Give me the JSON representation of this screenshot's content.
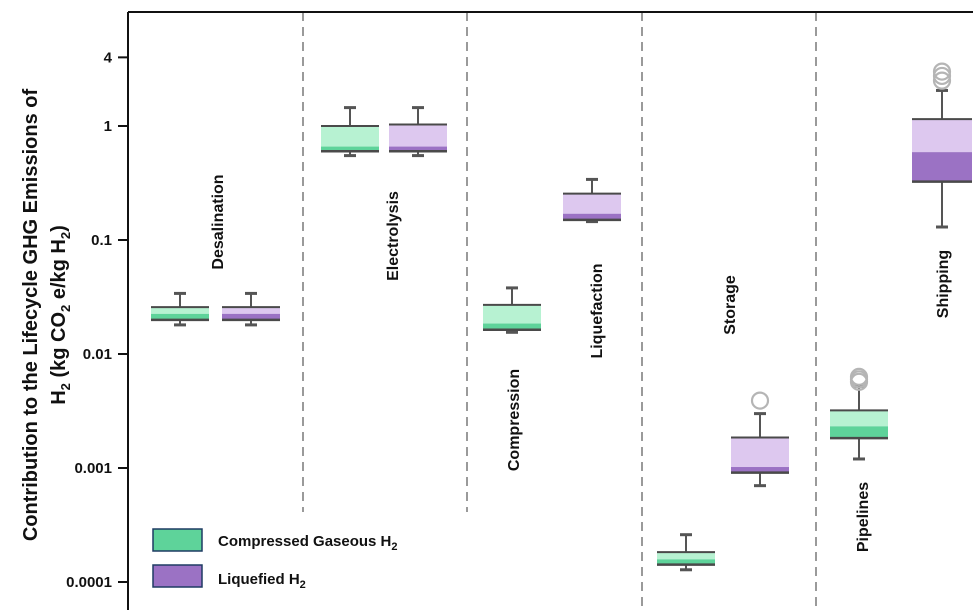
{
  "chart_data": {
    "type": "box",
    "y_scale": "log",
    "ylim": [
      6e-05,
      4
    ],
    "y_ticks": [
      "4",
      "1",
      "0.1",
      "0.01",
      "0.001",
      "0.0001"
    ],
    "ylabel_line1": "Contribution to the Lifecycle GHG Emissions of",
    "ylabel_line2": "H2 (kg CO2 e/kg H2)",
    "grid": false,
    "legend_position": "bottom-left",
    "categories": [
      "Desalination",
      "Electrolysis",
      "Compression",
      "Liquefaction",
      "Storage",
      "Pipelines",
      "Shipping"
    ],
    "series": [
      {
        "name": "Compressed Gaseous H2",
        "color": "#5ed39a",
        "light_color": "#b7f2d2"
      },
      {
        "name": "Liquefied H2",
        "color": "#9b72c4",
        "light_color": "#ddc8ef"
      }
    ],
    "legend": [
      {
        "label": "Compressed Gaseous H",
        "sub": "2"
      },
      {
        "label": "Liquefied H",
        "sub": "2"
      }
    ],
    "boxes": [
      {
        "category": "Desalination",
        "series": "Compressed Gaseous H2",
        "min": 0.018,
        "q1": 0.0199,
        "median": 0.0225,
        "q3": 0.0258,
        "max": 0.034,
        "outliers": []
      },
      {
        "category": "Desalination",
        "series": "Liquefied H2",
        "min": 0.018,
        "q1": 0.0199,
        "median": 0.0225,
        "q3": 0.0258,
        "max": 0.034,
        "outliers": []
      },
      {
        "category": "Electrolysis",
        "series": "Compressed Gaseous H2",
        "min": 0.55,
        "q1": 0.6,
        "median": 0.66,
        "q3": 1.0,
        "max": 1.45,
        "outliers": []
      },
      {
        "category": "Electrolysis",
        "series": "Liquefied H2",
        "min": 0.55,
        "q1": 0.6,
        "median": 0.66,
        "q3": 1.03,
        "max": 1.45,
        "outliers": []
      },
      {
        "category": "Compression",
        "series": "Compressed Gaseous H2",
        "min": 0.0155,
        "q1": 0.0163,
        "median": 0.0185,
        "q3": 0.027,
        "max": 0.038,
        "outliers": []
      },
      {
        "category": "Liquefaction",
        "series": "Liquefied H2",
        "min": 0.145,
        "q1": 0.15,
        "median": 0.17,
        "q3": 0.255,
        "max": 0.34,
        "outliers": []
      },
      {
        "category": "Storage",
        "series": "Compressed Gaseous H2",
        "min": 0.000128,
        "q1": 0.000142,
        "median": 0.000158,
        "q3": 0.000183,
        "max": 0.00026,
        "outliers": []
      },
      {
        "category": "Storage",
        "series": "Liquefied H2",
        "min": 0.0007,
        "q1": 0.00091,
        "median": 0.00102,
        "q3": 0.00185,
        "max": 0.003,
        "outliers": [
          0.0039
        ]
      },
      {
        "category": "Pipelines",
        "series": "Compressed Gaseous H2",
        "min": 0.0012,
        "q1": 0.00183,
        "median": 0.00232,
        "q3": 0.0032,
        "max": 0.0052,
        "outliers": [
          0.0057,
          0.006,
          0.0063
        ]
      },
      {
        "category": "Shipping",
        "series": "Liquefied H2",
        "min": 0.13,
        "q1": 0.325,
        "median": 0.59,
        "q3": 1.15,
        "max": 2.05,
        "outliers": [
          2.5,
          2.75,
          3.0
        ]
      }
    ]
  }
}
